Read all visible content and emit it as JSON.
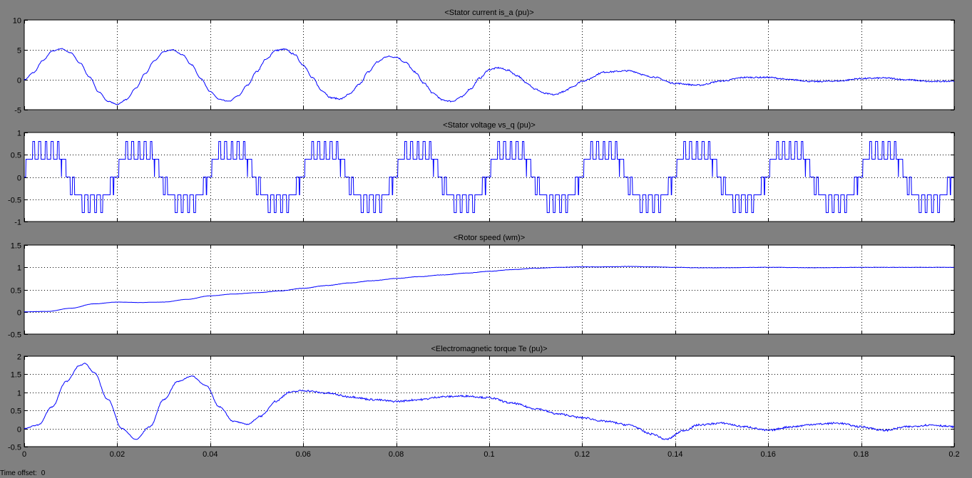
{
  "window": {
    "time_offset_label": "Time offset:",
    "time_offset_value": "0"
  },
  "colors": {
    "background": "#808080",
    "plot_bg": "#ffffff",
    "trace": "#0000ff",
    "grid": "#000000"
  },
  "x_axis": {
    "xlim": [
      0,
      0.2
    ],
    "ticks": [
      0,
      0.02,
      0.04,
      0.06,
      0.08,
      0.1,
      0.12,
      0.14,
      0.16,
      0.18,
      0.2
    ],
    "tick_labels": [
      "0",
      "0.02",
      "0.04",
      "0.06",
      "0.08",
      "0.1",
      "0.12",
      "0.14",
      "0.16",
      "0.18",
      "0.2"
    ]
  },
  "chart_data": [
    {
      "type": "line",
      "title": "<Stator current is_a (pu)>",
      "xlabel": "",
      "ylabel": "",
      "ylim": [
        -5,
        10
      ],
      "yticks": [
        -5,
        0,
        5,
        10
      ],
      "ytick_labels": [
        "-5",
        "0",
        "5",
        "10"
      ],
      "grid": true,
      "series": [
        {
          "x": [
            0,
            0.002,
            0.004,
            0.006,
            0.008,
            0.01,
            0.012,
            0.014,
            0.016,
            0.018,
            0.02,
            0.022,
            0.024,
            0.026,
            0.028,
            0.03,
            0.032,
            0.034,
            0.036,
            0.038,
            0.04,
            0.042,
            0.044,
            0.046,
            0.048,
            0.05,
            0.052,
            0.054,
            0.056,
            0.058,
            0.06,
            0.062,
            0.064,
            0.066,
            0.068,
            0.07,
            0.072,
            0.074,
            0.076,
            0.078,
            0.08,
            0.082,
            0.084,
            0.086,
            0.088,
            0.09,
            0.092,
            0.094,
            0.096,
            0.098,
            0.1,
            0.102,
            0.104,
            0.106,
            0.108,
            0.11,
            0.112,
            0.114,
            0.116,
            0.118,
            0.12,
            0.125,
            0.13,
            0.135,
            0.14,
            0.145,
            0.15,
            0.155,
            0.16,
            0.165,
            0.17,
            0.175,
            0.18,
            0.185,
            0.19,
            0.195,
            0.2
          ],
          "y": [
            0,
            1.2,
            3.2,
            4.8,
            5.2,
            4.5,
            2.8,
            0.5,
            -2.0,
            -3.6,
            -4.1,
            -3.3,
            -1.4,
            1.0,
            3.2,
            4.7,
            5.0,
            4.2,
            2.5,
            0.2,
            -2.0,
            -3.3,
            -3.6,
            -2.7,
            -0.9,
            1.4,
            3.4,
            4.9,
            5.1,
            4.3,
            2.5,
            0.3,
            -1.8,
            -3.0,
            -3.2,
            -2.4,
            -0.8,
            1.3,
            3.0,
            3.9,
            3.8,
            2.9,
            1.3,
            -0.6,
            -2.3,
            -3.4,
            -3.6,
            -2.9,
            -1.5,
            0.3,
            1.7,
            2.0,
            1.6,
            0.7,
            -0.5,
            -1.6,
            -2.3,
            -2.5,
            -2.0,
            -1.1,
            -0.2,
            1.3,
            1.5,
            0.5,
            -0.6,
            -0.9,
            -0.2,
            0.4,
            0.4,
            0.0,
            -0.3,
            -0.2,
            0.2,
            0.3,
            0.0,
            -0.3,
            -0.2
          ]
        }
      ]
    },
    {
      "type": "line",
      "title": "<Stator voltage vs_q (pu)>",
      "xlabel": "",
      "ylabel": "",
      "ylim": [
        -1,
        1
      ],
      "yticks": [
        -1,
        -0.5,
        0,
        0.5,
        1
      ],
      "ytick_labels": [
        "-1",
        "-0.5",
        "0",
        "0.5",
        "1"
      ],
      "grid": true,
      "note_levels": [
        -0.8,
        -0.4,
        0,
        0.4,
        0.8
      ],
      "fundamental_period_s": 0.02,
      "series": [
        {
          "name": "",
          "levels": [
            -0.8,
            -0.4,
            0,
            0.4,
            0.8
          ]
        }
      ]
    },
    {
      "type": "line",
      "title": "<Rotor speed (wm)>",
      "xlabel": "",
      "ylabel": "",
      "ylim": [
        -0.5,
        1.5
      ],
      "yticks": [
        -0.5,
        0,
        0.5,
        1,
        1.5
      ],
      "ytick_labels": [
        "-0.5",
        "0",
        "0.5",
        "1",
        "1.5"
      ],
      "grid": true,
      "series": [
        {
          "x": [
            0,
            0.005,
            0.01,
            0.015,
            0.02,
            0.025,
            0.03,
            0.035,
            0.04,
            0.045,
            0.05,
            0.055,
            0.06,
            0.065,
            0.07,
            0.075,
            0.08,
            0.085,
            0.09,
            0.095,
            0.1,
            0.105,
            0.11,
            0.115,
            0.12,
            0.125,
            0.13,
            0.135,
            0.14,
            0.145,
            0.15,
            0.16,
            0.17,
            0.18,
            0.19,
            0.2
          ],
          "y": [
            0,
            0.01,
            0.08,
            0.18,
            0.22,
            0.21,
            0.22,
            0.28,
            0.36,
            0.4,
            0.43,
            0.47,
            0.53,
            0.59,
            0.65,
            0.7,
            0.75,
            0.79,
            0.83,
            0.87,
            0.91,
            0.95,
            0.98,
            1.0,
            1.01,
            1.01,
            1.02,
            1.01,
            1.0,
            0.99,
            0.99,
            1.0,
            0.99,
            1.0,
            1.0,
            1.0
          ]
        }
      ]
    },
    {
      "type": "line",
      "title": "<Electromagnetic torque Te (pu)>",
      "xlabel": "",
      "ylabel": "",
      "ylim": [
        -0.5,
        2
      ],
      "yticks": [
        -0.5,
        0,
        0.5,
        1,
        1.5,
        2
      ],
      "ytick_labels": [
        "-0.5",
        "0",
        "0.5",
        "1",
        "1.5",
        "2"
      ],
      "grid": true,
      "series": [
        {
          "x": [
            0,
            0.003,
            0.006,
            0.009,
            0.012,
            0.013,
            0.015,
            0.018,
            0.021,
            0.024,
            0.027,
            0.03,
            0.033,
            0.036,
            0.039,
            0.042,
            0.045,
            0.048,
            0.051,
            0.054,
            0.057,
            0.06,
            0.065,
            0.07,
            0.075,
            0.08,
            0.085,
            0.09,
            0.095,
            0.1,
            0.105,
            0.11,
            0.115,
            0.12,
            0.125,
            0.13,
            0.135,
            0.138,
            0.142,
            0.145,
            0.15,
            0.155,
            0.16,
            0.165,
            0.17,
            0.175,
            0.18,
            0.185,
            0.19,
            0.195,
            0.2
          ],
          "y": [
            0,
            0.1,
            0.6,
            1.3,
            1.75,
            1.8,
            1.55,
            0.8,
            0.0,
            -0.3,
            0.05,
            0.8,
            1.3,
            1.45,
            1.2,
            0.6,
            0.2,
            0.12,
            0.35,
            0.75,
            1.0,
            1.05,
            0.98,
            0.88,
            0.8,
            0.75,
            0.8,
            0.88,
            0.9,
            0.85,
            0.7,
            0.55,
            0.4,
            0.3,
            0.2,
            0.1,
            -0.15,
            -0.3,
            -0.05,
            0.1,
            0.15,
            0.05,
            -0.05,
            0.05,
            0.12,
            0.15,
            0.05,
            -0.05,
            0.05,
            0.1,
            0.05
          ]
        }
      ]
    }
  ]
}
